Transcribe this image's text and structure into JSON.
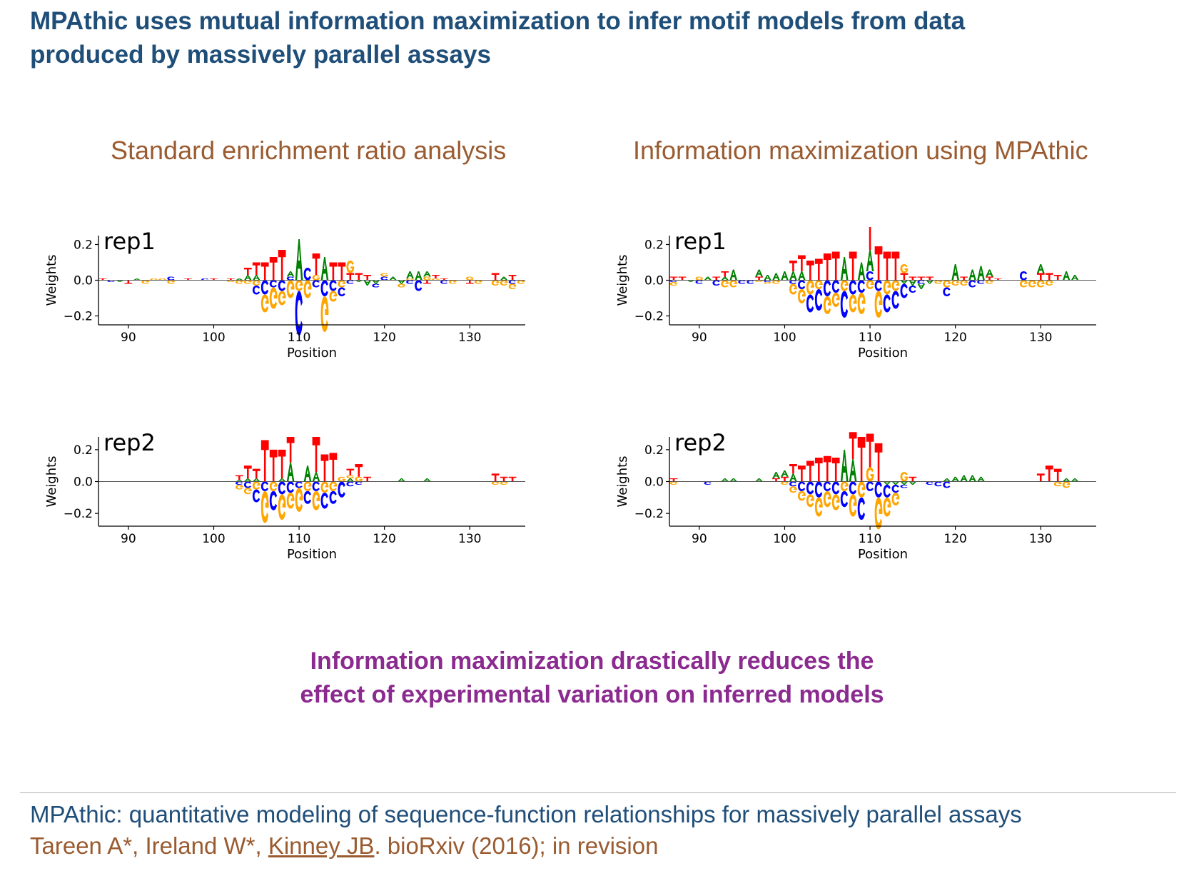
{
  "slide": {
    "title_line1": "MPAthic uses mutual information maximization to infer motif models from data",
    "title_line2": "produced by massively parallel assays",
    "left_header": "Standard enrichment ratio analysis",
    "right_header": "Information maximization using MPAthic",
    "takeaway_line1": "Information maximization drastically reduces the",
    "takeaway_line2": "effect of experimental variation on inferred models",
    "citation_title": "MPAthic: quantitative modeling of sequence-function relationships for massively parallel assays",
    "citation_authors_a": "Tareen A*, Ireland W*, ",
    "citation_authors_link": "Kinney JB",
    "citation_authors_b": ". bioRxiv (2016); in revision"
  },
  "colors": {
    "A": "#008000",
    "C": "#0000ff",
    "G": "#ffa500",
    "T": "#ff0000",
    "title": "#1f4e79",
    "section_header": "#9a5b30",
    "takeaway": "#8b2a8f"
  },
  "chart_data": [
    {
      "id": "er-rep1",
      "type": "sequence-logo",
      "panel_label": "rep1",
      "xlabel": "Position",
      "ylabel": "Weights",
      "xticks": [
        90,
        100,
        110,
        120,
        130
      ],
      "yticks": [
        0.2,
        0.0,
        -0.2
      ],
      "ytick_labels": [
        "0.2",
        "0.0",
        "−0.2"
      ],
      "xlim": [
        86.5,
        136.5
      ],
      "ylim": [
        -0.25,
        0.25
      ],
      "positions": [
        87,
        88,
        89,
        90,
        91,
        92,
        93,
        94,
        95,
        96,
        97,
        98,
        99,
        100,
        101,
        102,
        103,
        104,
        105,
        106,
        107,
        108,
        109,
        110,
        111,
        112,
        113,
        114,
        115,
        116,
        117,
        118,
        119,
        120,
        121,
        122,
        123,
        124,
        125,
        126,
        127,
        128,
        129,
        130,
        131,
        132,
        133,
        134,
        135,
        136
      ],
      "weights": {
        "A": [
          0.0,
          0.0,
          -0.01,
          0.0,
          0.01,
          0.0,
          0.0,
          0.0,
          0.0,
          0.0,
          0.0,
          0.0,
          0.0,
          0.0,
          0.0,
          0.0,
          0.01,
          0.03,
          0.03,
          0.0,
          0.0,
          0.0,
          0.03,
          0.23,
          0.0,
          0.0,
          0.13,
          0.0,
          0.0,
          0.0,
          -0.01,
          -0.03,
          -0.02,
          0.0,
          0.02,
          -0.02,
          0.04,
          0.05,
          0.03,
          0.0,
          0.0,
          0.0,
          0.0,
          0.0,
          0.0,
          0.0,
          0.0,
          0.02,
          0.0,
          0.0
        ],
        "C": [
          0.0,
          -0.01,
          0.0,
          0.0,
          0.0,
          0.0,
          0.0,
          0.0,
          0.02,
          0.0,
          0.0,
          0.0,
          0.01,
          0.0,
          0.0,
          0.0,
          0.0,
          0.0,
          -0.05,
          -0.08,
          -0.04,
          -0.06,
          0.02,
          -0.25,
          0.07,
          -0.04,
          -0.09,
          -0.06,
          -0.05,
          -0.02,
          0.0,
          0.0,
          -0.02,
          0.02,
          0.0,
          0.0,
          -0.02,
          -0.06,
          0.0,
          0.0,
          -0.02,
          0.0,
          0.0,
          0.0,
          0.0,
          0.0,
          0.0,
          0.0,
          -0.02,
          0.0
        ],
        "G": [
          0.0,
          0.0,
          0.0,
          0.0,
          0.0,
          -0.02,
          0.01,
          0.01,
          -0.02,
          0.0,
          0.0,
          0.0,
          0.0,
          0.0,
          0.0,
          -0.01,
          -0.02,
          -0.02,
          -0.03,
          -0.1,
          -0.12,
          -0.08,
          -0.1,
          -0.06,
          -0.1,
          0.03,
          -0.2,
          -0.06,
          -0.04,
          0.07,
          0.0,
          0.0,
          0.0,
          0.02,
          0.0,
          -0.02,
          0.01,
          0.0,
          0.02,
          0.01,
          0.0,
          -0.02,
          0.0,
          0.02,
          -0.02,
          0.0,
          -0.03,
          -0.03,
          -0.03,
          -0.02
        ],
        "T": [
          0.01,
          0.0,
          0.0,
          -0.02,
          0.0,
          0.0,
          0.0,
          0.0,
          0.0,
          0.0,
          0.01,
          0.0,
          0.0,
          0.01,
          0.0,
          0.01,
          0.0,
          0.04,
          0.07,
          0.1,
          0.13,
          0.17,
          0.0,
          0.0,
          0.0,
          0.12,
          0.0,
          0.1,
          0.1,
          0.04,
          0.04,
          0.03,
          0.0,
          0.0,
          0.0,
          0.0,
          0.0,
          0.0,
          -0.02,
          0.02,
          0.01,
          0.0,
          0.0,
          -0.02,
          0.0,
          0.0,
          0.04,
          0.0,
          0.03,
          0.0
        ]
      }
    },
    {
      "id": "mi-rep1",
      "type": "sequence-logo",
      "panel_label": "rep1",
      "xlabel": "Position",
      "ylabel": "Weights",
      "xticks": [
        90,
        100,
        110,
        120,
        130
      ],
      "yticks": [
        0.2,
        0.0,
        -0.2
      ],
      "ytick_labels": [
        "0.2",
        "0.0",
        "−0.2"
      ],
      "xlim": [
        86.5,
        136.5
      ],
      "ylim": [
        -0.25,
        0.25
      ],
      "positions": [
        87,
        88,
        89,
        90,
        91,
        92,
        93,
        94,
        95,
        96,
        97,
        98,
        99,
        100,
        101,
        102,
        103,
        104,
        105,
        106,
        107,
        108,
        109,
        110,
        111,
        112,
        113,
        114,
        115,
        116,
        117,
        118,
        119,
        120,
        121,
        122,
        123,
        124,
        125,
        126,
        127,
        128,
        129,
        130,
        131,
        132,
        133,
        134,
        135,
        136
      ],
      "weights": {
        "A": [
          0.0,
          0.0,
          -0.01,
          0.0,
          0.02,
          0.0,
          0.02,
          0.06,
          0.0,
          0.0,
          0.04,
          0.03,
          0.04,
          0.05,
          0.05,
          0.05,
          0.0,
          0.0,
          0.0,
          0.0,
          0.13,
          0.0,
          0.1,
          0.12,
          0.0,
          0.0,
          0.0,
          -0.02,
          -0.03,
          -0.03,
          -0.02,
          0.0,
          0.0,
          0.09,
          0.0,
          0.06,
          0.08,
          0.04,
          0.0,
          0.0,
          0.0,
          0.0,
          0.0,
          0.05,
          0.0,
          0.0,
          0.05,
          0.03,
          0.0,
          0.0
        ],
        "C": [
          -0.01,
          0.0,
          0.0,
          -0.02,
          0.0,
          -0.03,
          0.0,
          0.0,
          -0.02,
          -0.02,
          0.0,
          -0.01,
          0.0,
          0.0,
          -0.02,
          -0.05,
          -0.1,
          -0.12,
          -0.09,
          -0.07,
          -0.15,
          -0.08,
          -0.07,
          0.05,
          -0.06,
          -0.1,
          -0.1,
          -0.08,
          -0.04,
          -0.02,
          0.0,
          0.0,
          -0.05,
          0.0,
          0.0,
          -0.04,
          -0.02,
          0.0,
          0.0,
          0.0,
          0.0,
          0.05,
          0.0,
          0.0,
          0.0,
          0.0,
          0.0,
          0.0,
          0.0,
          0.0
        ],
        "G": [
          -0.02,
          0.0,
          0.0,
          0.02,
          0.0,
          0.0,
          -0.04,
          -0.04,
          0.0,
          0.0,
          -0.01,
          -0.01,
          -0.02,
          0.0,
          -0.06,
          -0.08,
          -0.08,
          -0.05,
          -0.1,
          -0.08,
          -0.06,
          -0.1,
          -0.12,
          -0.05,
          -0.15,
          -0.08,
          -0.06,
          0.05,
          0.0,
          0.0,
          0.0,
          -0.02,
          -0.04,
          -0.03,
          -0.03,
          0.0,
          0.0,
          -0.02,
          0.0,
          0.0,
          0.0,
          -0.04,
          -0.04,
          -0.04,
          -0.03,
          0.0,
          0.0,
          0.0,
          0.0,
          0.0
        ],
        "T": [
          0.02,
          0.02,
          0.0,
          0.0,
          0.0,
          0.02,
          0.03,
          0.0,
          0.0,
          0.0,
          0.02,
          0.0,
          0.0,
          0.0,
          0.06,
          0.09,
          0.11,
          0.12,
          0.15,
          0.16,
          0.0,
          0.16,
          0.0,
          0.23,
          0.19,
          0.16,
          0.16,
          0.04,
          0.02,
          0.02,
          0.02,
          0.0,
          0.0,
          0.0,
          0.02,
          0.0,
          0.0,
          0.02,
          0.01,
          0.0,
          0.0,
          0.0,
          0.0,
          0.04,
          0.04,
          0.03,
          0.0,
          0.0,
          0.0,
          0.0
        ]
      }
    },
    {
      "id": "er-rep2",
      "type": "sequence-logo",
      "panel_label": "rep2",
      "xlabel": "Position",
      "ylabel": "Weights",
      "xticks": [
        90,
        100,
        110,
        120,
        130
      ],
      "yticks": [
        0.2,
        0.0,
        -0.2
      ],
      "ytick_labels": [
        "0.2",
        "0.0",
        "−0.2"
      ],
      "xlim": [
        86.5,
        136.5
      ],
      "ylim": [
        -0.28,
        0.28
      ],
      "positions": [
        87,
        88,
        89,
        90,
        91,
        92,
        93,
        94,
        95,
        96,
        97,
        98,
        99,
        100,
        101,
        102,
        103,
        104,
        105,
        106,
        107,
        108,
        109,
        110,
        111,
        112,
        113,
        114,
        115,
        116,
        117,
        118,
        119,
        120,
        121,
        122,
        123,
        124,
        125,
        126,
        127,
        128,
        129,
        130,
        131,
        132,
        133,
        134,
        135,
        136
      ],
      "weights": {
        "A": [
          0.0,
          0.0,
          0.0,
          0.0,
          0.0,
          0.0,
          0.0,
          0.0,
          0.0,
          0.0,
          0.0,
          0.0,
          0.0,
          0.0,
          0.0,
          0.0,
          0.01,
          0.02,
          0.02,
          0.0,
          0.0,
          0.02,
          0.12,
          0.0,
          0.1,
          0.06,
          0.0,
          0.0,
          0.0,
          0.02,
          0.0,
          0.0,
          0.0,
          0.0,
          0.0,
          0.02,
          0.0,
          0.0,
          0.02,
          0.0,
          0.0,
          0.0,
          0.0,
          0.0,
          0.0,
          0.0,
          0.0,
          0.0,
          0.0,
          0.0
        ],
        "C": [
          0.0,
          0.0,
          0.0,
          0.0,
          0.0,
          0.0,
          0.0,
          0.0,
          0.0,
          0.0,
          0.0,
          0.0,
          0.0,
          0.0,
          0.0,
          0.0,
          -0.02,
          -0.04,
          -0.08,
          -0.06,
          -0.12,
          -0.08,
          -0.07,
          -0.04,
          -0.08,
          -0.06,
          -0.1,
          -0.08,
          -0.1,
          -0.03,
          -0.02,
          0.0,
          0.0,
          0.0,
          0.0,
          0.0,
          0.0,
          0.0,
          0.0,
          0.0,
          0.0,
          0.0,
          0.0,
          0.0,
          0.0,
          0.0,
          0.0,
          0.0,
          0.0,
          0.0
        ],
        "G": [
          0.0,
          0.0,
          0.0,
          0.0,
          0.0,
          0.0,
          0.0,
          0.0,
          0.0,
          0.0,
          0.0,
          0.0,
          0.0,
          0.0,
          0.0,
          0.0,
          -0.03,
          -0.04,
          -0.05,
          -0.2,
          -0.06,
          -0.16,
          -0.1,
          -0.15,
          -0.06,
          -0.12,
          -0.07,
          -0.06,
          0.03,
          0.02,
          0.03,
          0.0,
          0.0,
          0.0,
          0.0,
          0.0,
          0.0,
          0.0,
          0.0,
          0.0,
          0.0,
          0.0,
          0.0,
          0.0,
          0.0,
          0.0,
          -0.02,
          -0.02,
          0.0,
          0.0
        ],
        "T": [
          0.0,
          0.0,
          0.0,
          0.0,
          0.0,
          0.0,
          0.0,
          0.0,
          0.0,
          0.0,
          0.0,
          0.0,
          0.0,
          0.0,
          0.0,
          0.0,
          0.03,
          0.08,
          0.06,
          0.26,
          0.2,
          0.18,
          0.16,
          0.0,
          0.0,
          0.22,
          0.17,
          0.18,
          0.0,
          0.04,
          0.08,
          0.03,
          0.0,
          0.0,
          0.0,
          0.0,
          0.0,
          0.0,
          0.0,
          0.0,
          0.0,
          0.0,
          0.0,
          0.0,
          0.0,
          0.0,
          0.05,
          0.03,
          0.03,
          0.0
        ]
      }
    },
    {
      "id": "mi-rep2",
      "type": "sequence-logo",
      "panel_label": "rep2",
      "xlabel": "Position",
      "ylabel": "Weights",
      "xticks": [
        90,
        100,
        110,
        120,
        130
      ],
      "yticks": [
        0.2,
        0.0,
        -0.2
      ],
      "ytick_labels": [
        "0.2",
        "0.0",
        "−0.2"
      ],
      "xlim": [
        86.5,
        136.5
      ],
      "ylim": [
        -0.28,
        0.28
      ],
      "positions": [
        87,
        88,
        89,
        90,
        91,
        92,
        93,
        94,
        95,
        96,
        97,
        98,
        99,
        100,
        101,
        102,
        103,
        104,
        105,
        106,
        107,
        108,
        109,
        110,
        111,
        112,
        113,
        114,
        115,
        116,
        117,
        118,
        119,
        120,
        121,
        122,
        123,
        124,
        125,
        126,
        127,
        128,
        129,
        130,
        131,
        132,
        133,
        134,
        135,
        136
      ],
      "weights": {
        "A": [
          0.0,
          0.0,
          0.0,
          0.0,
          0.0,
          0.0,
          0.02,
          0.02,
          0.0,
          0.0,
          0.02,
          0.0,
          0.04,
          0.04,
          0.05,
          0.0,
          0.0,
          0.0,
          0.0,
          0.0,
          0.2,
          0.14,
          0.0,
          0.0,
          0.0,
          -0.02,
          -0.02,
          -0.02,
          -0.02,
          0.0,
          0.0,
          0.0,
          0.02,
          0.03,
          0.04,
          0.04,
          0.03,
          0.0,
          0.0,
          0.0,
          0.0,
          0.0,
          0.0,
          0.0,
          0.0,
          0.0,
          0.02,
          0.02,
          0.0,
          0.0
        ],
        "C": [
          0.0,
          0.0,
          0.0,
          0.0,
          -0.02,
          0.0,
          0.0,
          0.0,
          0.0,
          0.0,
          0.0,
          0.0,
          0.0,
          0.0,
          -0.03,
          -0.06,
          -0.08,
          -0.1,
          -0.06,
          -0.08,
          -0.1,
          -0.08,
          -0.14,
          -0.06,
          -0.1,
          -0.08,
          -0.05,
          -0.02,
          0.0,
          0.0,
          -0.02,
          -0.03,
          -0.04,
          0.0,
          0.0,
          0.0,
          0.0,
          0.0,
          0.0,
          0.0,
          0.0,
          0.0,
          0.0,
          0.0,
          0.0,
          0.0,
          0.0,
          0.0,
          0.0,
          0.0
        ],
        "G": [
          -0.02,
          0.0,
          0.0,
          0.0,
          0.0,
          0.0,
          0.0,
          0.0,
          0.0,
          0.0,
          0.0,
          0.0,
          0.0,
          -0.02,
          -0.04,
          -0.06,
          -0.08,
          -0.12,
          -0.1,
          -0.1,
          -0.06,
          -0.14,
          -0.1,
          0.09,
          -0.2,
          -0.12,
          -0.08,
          0.06,
          0.0,
          0.0,
          0.0,
          0.0,
          0.0,
          0.0,
          0.0,
          0.0,
          0.0,
          0.0,
          0.0,
          0.0,
          0.0,
          0.0,
          0.0,
          0.0,
          0.0,
          -0.03,
          -0.04,
          0.0,
          0.0,
          0.0
        ],
        "T": [
          0.02,
          0.0,
          0.0,
          0.0,
          0.0,
          0.0,
          0.0,
          0.0,
          0.0,
          0.0,
          0.0,
          0.0,
          0.02,
          0.03,
          0.06,
          0.1,
          0.13,
          0.15,
          0.16,
          0.15,
          0.0,
          0.17,
          0.28,
          0.21,
          0.24,
          0.0,
          0.0,
          0.0,
          0.03,
          0.0,
          0.0,
          0.0,
          0.0,
          0.0,
          0.0,
          0.0,
          0.0,
          0.0,
          0.0,
          0.0,
          0.0,
          0.0,
          0.0,
          0.05,
          0.1,
          0.08,
          0.0,
          0.0,
          0.0,
          0.0
        ]
      }
    }
  ]
}
